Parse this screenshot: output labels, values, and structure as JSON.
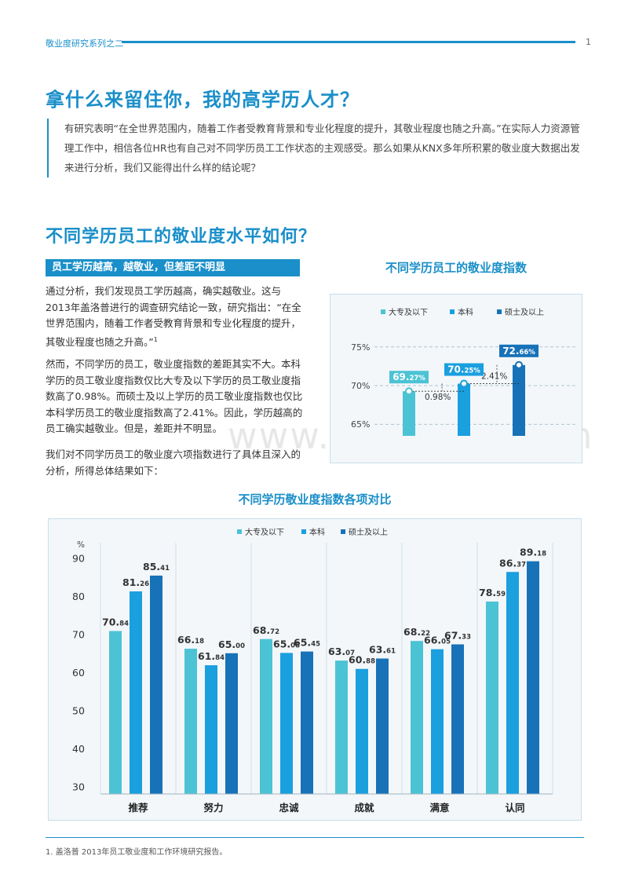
{
  "header": {
    "series_title": "敬业度研究系列之二",
    "page_number": "1"
  },
  "main_title": "拿什么来留住你，我的高学历人才？",
  "intro": "有研究表明“在全世界范围内，随着工作者受教育背景和专业化程度的提升，其敬业程度也随之升高。”在实际人力资源管理工作中，相信各位HR也有自己对不同学历员工工作状态的主观感受。那么如果从KNX多年所积累的敬业度大数据出发来进行分析，我们又能得出什么样的结论呢？",
  "section": {
    "title": "不同学历员工的敬业度水平如何？",
    "subheading": "员工学历越高，越敬业，但差距不明显",
    "para1": "通过分析，我们发现员工学历越高，确实越敬业。这与2013年盖洛普进行的调查研究结论一致，研究指出：“在全世界范围内，随着工作者受教育背景和专业化程度的提升，其敬业程度也随之升高。”",
    "para1_ref": "1",
    "para2": "然而，不同学历的员工，敬业度指数的差距其实不大。本科学历的员工敬业度指数仅比大专及以下学历的员工敬业度指数高了0.98%。而硕士及以上学历的员工敬业度指数也仅比本科学历员工的敬业度指数高了2.41%。因此，学历越高的员工确实越敬业。但是，差距并不明显。",
    "para3": "我们对不同学历员工的敬业度六项指数进行了具体且深入的分析，所得总体结果如下："
  },
  "watermark": "www.baogao8.com",
  "footnote": "1. 盖洛普 2013年员工敬业度和工作环境研究报告。",
  "colors": {
    "series1": "#4cc3d5",
    "series2": "#1a9fdf",
    "series3": "#1772b8",
    "accent": "#1a8fc9"
  },
  "chart_data": [
    {
      "type": "bar",
      "title": "不同学历员工的敬业度指数",
      "legend_position": "top",
      "categories": [
        "大专及以下",
        "本科",
        "硕士及以上"
      ],
      "values": [
        69.27,
        70.25,
        72.66
      ],
      "value_labels": [
        {
          "main": "69.",
          "small": "27%"
        },
        {
          "main": "70.",
          "small": "25%"
        },
        {
          "main": "72.",
          "small": "66%"
        }
      ],
      "y_ticks": [
        {
          "value": 75,
          "label": "75%"
        },
        {
          "value": 70,
          "label": "70%"
        },
        {
          "value": 65,
          "label": "65%"
        }
      ],
      "ylim": [
        63.5,
        76.5
      ],
      "grid": "dashed",
      "annotations": [
        "0.98%",
        "2.41%"
      ]
    },
    {
      "type": "bar",
      "title": "不同学历敬业度指数各项对比",
      "legend_position": "top",
      "y_unit": "%",
      "ylim": [
        28,
        92
      ],
      "y_ticks": [
        90,
        80,
        70,
        60,
        50,
        40,
        30
      ],
      "categories": [
        "推荐",
        "努力",
        "忠诚",
        "成就",
        "满意",
        "认同"
      ],
      "series": [
        {
          "name": "大专及以下",
          "values": [
            70.84,
            66.18,
            68.72,
            63.07,
            68.22,
            78.59
          ],
          "labels": [
            [
              "70.",
              "84"
            ],
            [
              "66.",
              "18"
            ],
            [
              "68.",
              "72"
            ],
            [
              "63.",
              "07"
            ],
            [
              "68.",
              "22"
            ],
            [
              "78.",
              "59"
            ]
          ]
        },
        {
          "name": "本科",
          "values": [
            81.26,
            61.84,
            65.08,
            60.88,
            66.05,
            86.37
          ],
          "labels": [
            [
              "81.",
              "26"
            ],
            [
              "61.",
              "84"
            ],
            [
              "65.",
              "08"
            ],
            [
              "60.",
              "88"
            ],
            [
              "66.",
              "05"
            ],
            [
              "86.",
              "37"
            ]
          ]
        },
        {
          "name": "硕士及以上",
          "values": [
            85.41,
            65.0,
            65.45,
            63.61,
            67.33,
            89.18
          ],
          "labels": [
            [
              "85.",
              "41"
            ],
            [
              "65.",
              "00"
            ],
            [
              "65.",
              "45"
            ],
            [
              "63.",
              "61"
            ],
            [
              "67.",
              "33"
            ],
            [
              "89.",
              "18"
            ]
          ]
        }
      ]
    }
  ]
}
